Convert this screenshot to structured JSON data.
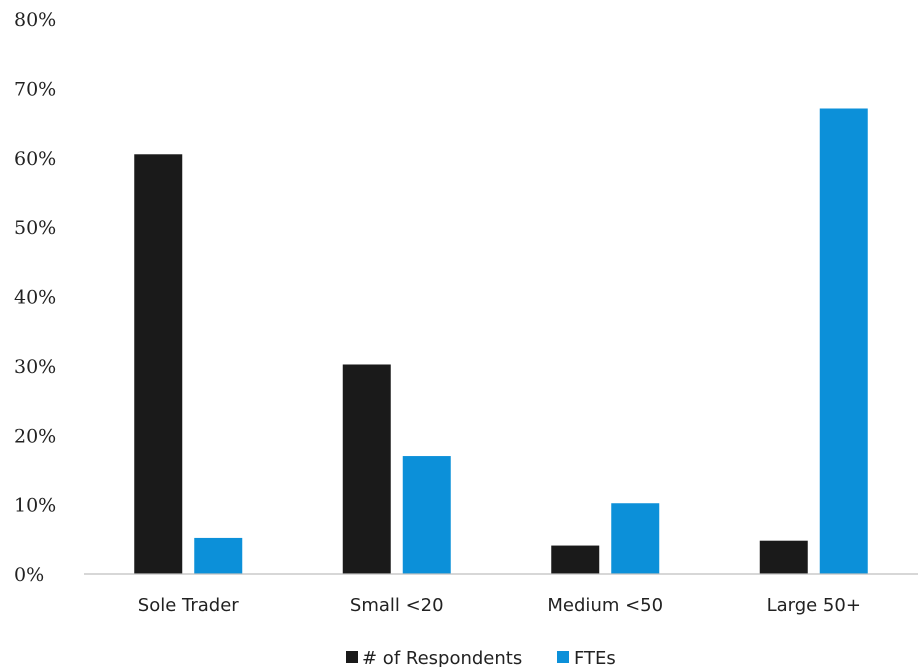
{
  "chart_data": {
    "type": "bar",
    "title": "",
    "xlabel": "",
    "ylabel": "",
    "categories": [
      "Sole Trader",
      "Small <20",
      "Medium <50",
      "Large 50+"
    ],
    "series": [
      {
        "name": "# of Respondents",
        "color": "#1a1a1a",
        "values": [
          60.5,
          30.2,
          4.1,
          4.8
        ]
      },
      {
        "name": "FTEs",
        "color": "#0c90d9",
        "values": [
          5.2,
          17.0,
          10.2,
          67.1
        ]
      }
    ],
    "ylim": [
      0,
      80
    ],
    "yticks": [
      0,
      10,
      20,
      30,
      40,
      50,
      60,
      70,
      80
    ],
    "ytick_labels": [
      "0%",
      "10%",
      "20%",
      "30%",
      "40%",
      "50%",
      "60%",
      "70%",
      "80%"
    ],
    "grid": false,
    "legend_position": "bottom"
  }
}
